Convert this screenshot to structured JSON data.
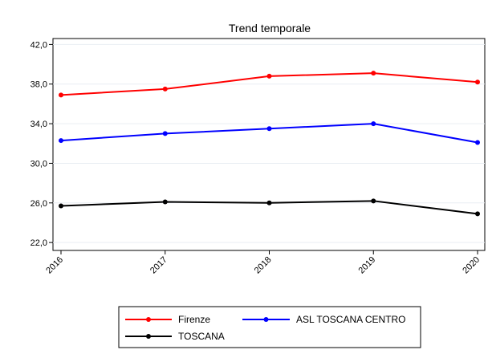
{
  "chart_data": {
    "type": "line",
    "title": "Trend temporale",
    "xlabel": "",
    "ylabel": "",
    "categories": [
      "2016",
      "2017",
      "2018",
      "2019",
      "2020"
    ],
    "ylim": [
      21.2,
      42.6
    ],
    "yticks": [
      22.0,
      26.0,
      30.0,
      34.0,
      38.0,
      42.0
    ],
    "ytick_labels": [
      "22,0",
      "26,0",
      "30,0",
      "34,0",
      "38,0",
      "42,0"
    ],
    "grid": true,
    "legend_position": "bottom",
    "series": [
      {
        "name": "Firenze",
        "color": "#ff0000",
        "values": [
          36.9,
          37.5,
          38.8,
          39.1,
          38.2
        ]
      },
      {
        "name": "ASL TOSCANA CENTRO",
        "color": "#0000ff",
        "values": [
          32.3,
          33.0,
          33.5,
          34.0,
          32.1
        ]
      },
      {
        "name": "TOSCANA",
        "color": "#000000",
        "values": [
          25.7,
          26.1,
          26.0,
          26.2,
          24.9
        ]
      }
    ]
  }
}
